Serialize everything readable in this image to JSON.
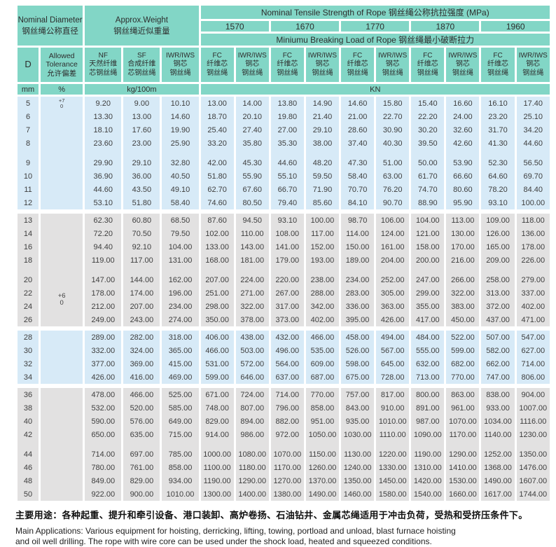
{
  "header": {
    "nominal_diameter_en": "Nominal Diameter",
    "nominal_diameter_zh": "钢丝绳公称直径",
    "approx_weight_en": "Approx.Weight",
    "approx_weight_zh": "钢丝绳近似重量",
    "tensile_title": "Nominal Tensile Strength of Rope 钢丝绳公称抗拉强度 (MPa)",
    "grades": [
      "1570",
      "1670",
      "1770",
      "1870",
      "1960"
    ],
    "breaking_title": "Miniumu Breaking Load of Rope 钢丝绳最小破断拉力",
    "col_d": "D",
    "tolerance_lines": [
      "Allowed",
      "Tolerance",
      "允许偏差"
    ],
    "weight_cols": [
      [
        "NF",
        "天然纤维",
        "芯钢丝绳"
      ],
      [
        "SF",
        "合成纤维",
        "芯钢丝绳"
      ],
      [
        "IWR/IWS",
        "钢芯",
        "钢丝绳"
      ]
    ],
    "fc_col": [
      "FC",
      "纤维芯",
      "钢丝绳"
    ],
    "iwr_col": [
      "IWR/IWS",
      "钢芯",
      "钢丝绳"
    ],
    "unit_mm": "mm",
    "unit_pct": "%",
    "unit_weight": "kg/100m",
    "unit_load": "KN"
  },
  "table": {
    "tolerance_upper": [
      "+7",
      "0"
    ],
    "tolerance_lower": [
      "+6",
      "0"
    ],
    "groups": [
      {
        "bg": "blue",
        "gap_after": "colored",
        "rows": [
          {
            "d": "5",
            "tol": "top",
            "values": [
              "9.20",
              "9.00",
              "10.10",
              "13.00",
              "14.00",
              "13.80",
              "14.90",
              "14.60",
              "15.80",
              "15.40",
              "16.60",
              "16.10",
              "17.40"
            ]
          },
          {
            "d": "6",
            "tol": "",
            "values": [
              "13.30",
              "13.00",
              "14.60",
              "18.70",
              "20.10",
              "19.80",
              "21.40",
              "21.00",
              "22.70",
              "22.20",
              "24.00",
              "23.20",
              "25.10"
            ]
          },
          {
            "d": "7",
            "tol": "",
            "values": [
              "18.10",
              "17.60",
              "19.90",
              "25.40",
              "27.40",
              "27.00",
              "29.10",
              "28.60",
              "30.90",
              "30.20",
              "32.60",
              "31.70",
              "34.20"
            ]
          },
          {
            "d": "8",
            "tol": "",
            "values": [
              "23.60",
              "23.00",
              "25.90",
              "33.20",
              "35.80",
              "35.30",
              "38.00",
              "37.40",
              "40.30",
              "39.50",
              "42.60",
              "41.30",
              "44.60"
            ]
          }
        ]
      },
      {
        "bg": "blue",
        "gap_after": "white",
        "rows": [
          {
            "d": "9",
            "tol": "",
            "values": [
              "29.90",
              "29.10",
              "32.80",
              "42.00",
              "45.30",
              "44.60",
              "48.20",
              "47.30",
              "51.00",
              "50.00",
              "53.90",
              "52.30",
              "56.50"
            ]
          },
          {
            "d": "10",
            "tol": "",
            "values": [
              "36.90",
              "36.00",
              "40.50",
              "51.80",
              "55.90",
              "55.10",
              "59.50",
              "58.40",
              "63.00",
              "61.70",
              "66.60",
              "64.60",
              "69.70"
            ]
          },
          {
            "d": "11",
            "tol": "",
            "values": [
              "44.60",
              "43.50",
              "49.10",
              "62.70",
              "67.60",
              "66.70",
              "71.90",
              "70.70",
              "76.20",
              "74.70",
              "80.60",
              "78.20",
              "84.40"
            ]
          },
          {
            "d": "12",
            "tol": "",
            "values": [
              "53.10",
              "51.80",
              "58.40",
              "74.60",
              "80.50",
              "79.40",
              "85.60",
              "84.10",
              "90.70",
              "88.90",
              "95.90",
              "93.10",
              "100.00"
            ]
          }
        ]
      },
      {
        "bg": "gray",
        "gap_after": "colored",
        "rows": [
          {
            "d": "13",
            "tol": "",
            "values": [
              "62.30",
              "60.80",
              "68.50",
              "87.60",
              "94.50",
              "93.10",
              "100.00",
              "98.70",
              "106.00",
              "104.00",
              "113.00",
              "109.00",
              "118.00"
            ]
          },
          {
            "d": "14",
            "tol": "",
            "values": [
              "72.20",
              "70.50",
              "79.50",
              "102.00",
              "110.00",
              "108.00",
              "117.00",
              "114.00",
              "124.00",
              "121.00",
              "130.00",
              "126.00",
              "136.00"
            ]
          },
          {
            "d": "16",
            "tol": "",
            "values": [
              "94.40",
              "92.10",
              "104.00",
              "133.00",
              "143.00",
              "141.00",
              "152.00",
              "150.00",
              "161.00",
              "158.00",
              "170.00",
              "165.00",
              "178.00"
            ]
          },
          {
            "d": "18",
            "tol": "",
            "values": [
              "119.00",
              "117.00",
              "131.00",
              "168.00",
              "181.00",
              "179.00",
              "193.00",
              "189.00",
              "204.00",
              "200.00",
              "216.00",
              "209.00",
              "226.00"
            ]
          }
        ]
      },
      {
        "bg": "gray",
        "gap_after": "white",
        "rows": [
          {
            "d": "20",
            "tol": "",
            "values": [
              "147.00",
              "144.00",
              "162.00",
              "207.00",
              "224.00",
              "220.00",
              "238.00",
              "234.00",
              "252.00",
              "247.00",
              "266.00",
              "258.00",
              "279.00"
            ]
          },
          {
            "d": "22",
            "tol": "mid",
            "values": [
              "178.00",
              "174.00",
              "196.00",
              "251.00",
              "271.00",
              "267.00",
              "288.00",
              "283.00",
              "305.00",
              "299.00",
              "322.00",
              "313.00",
              "337.00"
            ]
          },
          {
            "d": "24",
            "tol": "skip",
            "values": [
              "212.00",
              "207.00",
              "234.00",
              "298.00",
              "322.00",
              "317.00",
              "342.00",
              "336.00",
              "363.00",
              "355.00",
              "383.00",
              "372.00",
              "402.00"
            ]
          },
          {
            "d": "26",
            "tol": "",
            "values": [
              "249.00",
              "243.00",
              "274.00",
              "350.00",
              "378.00",
              "373.00",
              "402.00",
              "395.00",
              "426.00",
              "417.00",
              "450.00",
              "437.00",
              "471.00"
            ]
          }
        ]
      },
      {
        "bg": "blue",
        "gap_after": "white",
        "rows": [
          {
            "d": "28",
            "tol": "",
            "values": [
              "289.00",
              "282.00",
              "318.00",
              "406.00",
              "438.00",
              "432.00",
              "466.00",
              "458.00",
              "494.00",
              "484.00",
              "522.00",
              "507.00",
              "547.00"
            ]
          },
          {
            "d": "30",
            "tol": "",
            "values": [
              "332.00",
              "324.00",
              "365.00",
              "466.00",
              "503.00",
              "496.00",
              "535.00",
              "526.00",
              "567.00",
              "555.00",
              "599.00",
              "582.00",
              "627.00"
            ]
          },
          {
            "d": "32",
            "tol": "",
            "values": [
              "377.00",
              "369.00",
              "415.00",
              "531.00",
              "572.00",
              "564.00",
              "609.00",
              "598.00",
              "645.00",
              "632.00",
              "682.00",
              "662.00",
              "714.00"
            ]
          },
          {
            "d": "34",
            "tol": "",
            "values": [
              "426.00",
              "416.00",
              "469.00",
              "599.00",
              "646.00",
              "637.00",
              "687.00",
              "675.00",
              "728.00",
              "713.00",
              "770.00",
              "747.00",
              "806.00"
            ]
          }
        ]
      },
      {
        "bg": "gray",
        "gap_after": "colored",
        "rows": [
          {
            "d": "36",
            "tol": "",
            "values": [
              "478.00",
              "466.00",
              "525.00",
              "671.00",
              "724.00",
              "714.00",
              "770.00",
              "757.00",
              "817.00",
              "800.00",
              "863.00",
              "838.00",
              "904.00"
            ]
          },
          {
            "d": "38",
            "tol": "",
            "values": [
              "532.00",
              "520.00",
              "585.00",
              "748.00",
              "807.00",
              "796.00",
              "858.00",
              "843.00",
              "910.00",
              "891.00",
              "961.00",
              "933.00",
              "1007.00"
            ]
          },
          {
            "d": "40",
            "tol": "",
            "values": [
              "590.00",
              "576.00",
              "649.00",
              "829.00",
              "894.00",
              "882.00",
              "951.00",
              "935.00",
              "1010.00",
              "987.00",
              "1070.00",
              "1034.00",
              "1116.00"
            ]
          },
          {
            "d": "42",
            "tol": "",
            "values": [
              "650.00",
              "635.00",
              "715.00",
              "914.00",
              "986.00",
              "972.00",
              "1050.00",
              "1030.00",
              "1110.00",
              "1090.00",
              "1170.00",
              "1140.00",
              "1230.00"
            ]
          }
        ]
      },
      {
        "bg": "gray",
        "gap_after": null,
        "rows": [
          {
            "d": "44",
            "tol": "",
            "values": [
              "714.00",
              "697.00",
              "785.00",
              "1000.00",
              "1080.00",
              "1070.00",
              "1150.00",
              "1130.00",
              "1220.00",
              "1190.00",
              "1290.00",
              "1252.00",
              "1350.00"
            ]
          },
          {
            "d": "46",
            "tol": "",
            "values": [
              "780.00",
              "761.00",
              "858.00",
              "1100.00",
              "1180.00",
              "1170.00",
              "1260.00",
              "1240.00",
              "1330.00",
              "1310.00",
              "1410.00",
              "1368.00",
              "1476.00"
            ]
          },
          {
            "d": "48",
            "tol": "",
            "values": [
              "849.00",
              "829.00",
              "934.00",
              "1190.00",
              "1290.00",
              "1270.00",
              "1370.00",
              "1350.00",
              "1450.00",
              "1420.00",
              "1530.00",
              "1490.00",
              "1607.00"
            ]
          },
          {
            "d": "50",
            "tol": "",
            "values": [
              "922.00",
              "900.00",
              "1010.00",
              "1300.00",
              "1400.00",
              "1380.00",
              "1490.00",
              "1460.00",
              "1580.00",
              "1540.00",
              "1660.00",
              "1617.00",
              "1744.00"
            ]
          }
        ]
      }
    ]
  },
  "footer": {
    "zh": "主要用途：各种起重、提升和牵引设备、港口装卸、高炉卷扬、石油钻井、金属芯绳适用于冲击负荷，受热和受挤压条件下。",
    "en_line1": "Main Applications: Various equipment for hoisting, derricking, lifting, towing, portload and unload, blast furnace hoisting",
    "en_line2": "and oil well drilling. The rope with wire core can be used under the shock load, heated and squeezed conditions."
  },
  "colors": {
    "teal_header": "#82d6c6",
    "row_blue": "#d7eaf7",
    "row_gray": "#e2e1e1"
  }
}
